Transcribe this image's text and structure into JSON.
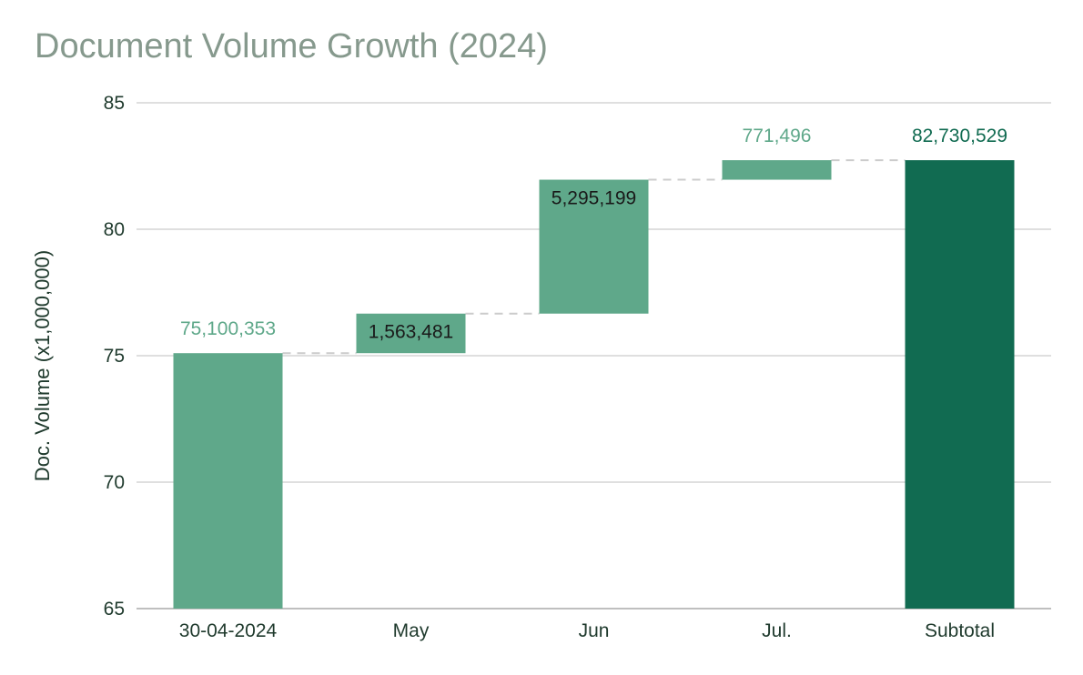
{
  "chart_data": {
    "type": "waterfall",
    "title": "Document Volume Growth (2024)",
    "ylabel": "Doc. Volume (x1,000,000)",
    "xlabel": "",
    "ylim": [
      65,
      85
    ],
    "yticks": [
      65,
      70,
      75,
      80,
      85
    ],
    "grid": true,
    "categories": [
      "30-04-2024",
      "May",
      "Jun",
      "Jul.",
      "Subtotal"
    ],
    "steps": [
      {
        "label": "30-04-2024",
        "kind": "start",
        "value": 75100353,
        "display": "75,100,353"
      },
      {
        "label": "May",
        "kind": "increase",
        "value": 1563481,
        "display": "1,563,481"
      },
      {
        "label": "Jun",
        "kind": "increase",
        "value": 5295199,
        "display": "5,295,199"
      },
      {
        "label": "Jul.",
        "kind": "increase",
        "value": 771496,
        "display": "771,496"
      },
      {
        "label": "Subtotal",
        "kind": "total",
        "value": 82730529,
        "display": "82,730,529"
      }
    ],
    "colors": {
      "increase": "#5fa88a",
      "total": "#116b51",
      "title": "#86998d",
      "grid": "#cccccc",
      "connector": "#cccccc",
      "axis_text": "#1f3a2d"
    }
  }
}
